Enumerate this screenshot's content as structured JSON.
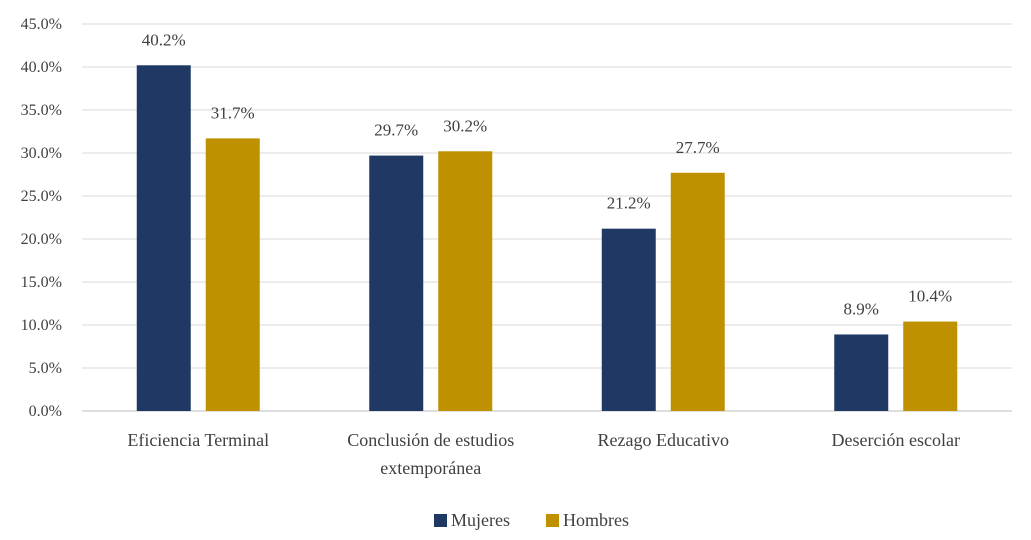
{
  "chart_data": {
    "type": "bar",
    "categories": [
      [
        "Eficiencia Terminal"
      ],
      [
        "Conclusión de estudios",
        "extemporánea"
      ],
      [
        "Rezago Educativo"
      ],
      [
        "Deserción escolar"
      ]
    ],
    "series": [
      {
        "name": "Mujeres",
        "color": "#1f3864",
        "values": [
          40.2,
          29.7,
          21.2,
          8.9
        ],
        "labels": [
          "40.2%",
          "29.7%",
          "21.2%",
          "8.9%"
        ]
      },
      {
        "name": "Hombres",
        "color": "#bf9000",
        "values": [
          31.7,
          30.2,
          27.7,
          10.4
        ],
        "labels": [
          "31.7%",
          "30.2%",
          "27.7%",
          "10.4%"
        ]
      }
    ],
    "y_ticks": [
      "0.0%",
      "5.0%",
      "10.0%",
      "15.0%",
      "20.0%",
      "25.0%",
      "30.0%",
      "35.0%",
      "40.0%",
      "45.0%"
    ],
    "ylim": [
      0,
      45
    ],
    "y_step": 5,
    "grid": true,
    "legend_position": "bottom"
  }
}
